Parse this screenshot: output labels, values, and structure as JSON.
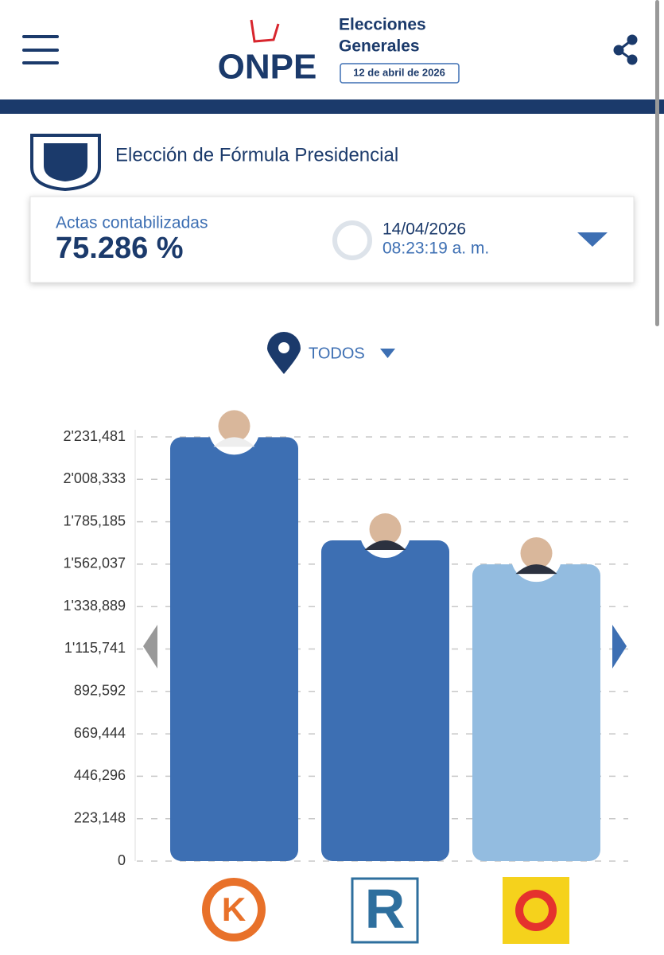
{
  "header": {
    "brand": "ONPE",
    "event_line1": "Elecciones",
    "event_line2": "Generales",
    "event_date": "12 de abril de 2026"
  },
  "section_title": "Elección de Fórmula Presidencial",
  "status": {
    "label": "Actas contabilizadas",
    "percent": "75.286 %",
    "date": "14/04/2026",
    "time": "08:23:19 a. m."
  },
  "filter": "TODOS",
  "party_logos": [
    "K",
    "R"
  ],
  "chart_data": {
    "type": "bar",
    "categories": [
      null,
      null,
      null
    ],
    "values": [
      2230000,
      1687000,
      1561000
    ],
    "colors": [
      "#3d6fb3",
      "#3d6fb3",
      "#93bce0"
    ],
    "ylim": [
      0,
      2231481
    ],
    "yticks": [
      0,
      {
        "value": 223148,
        "label": "223,148"
      },
      {
        "value": 446296,
        "label": "446,296"
      },
      {
        "value": 669444,
        "label": "669,444"
      },
      {
        "value": 892592,
        "label": "892,592"
      },
      {
        "value": 1115741,
        "label": "1'115,741"
      },
      {
        "value": 1338889,
        "label": "1'338,889"
      },
      {
        "value": 1562037,
        "label": "1'562,037"
      },
      {
        "value": 1785185,
        "label": "1'785,185"
      },
      {
        "value": 2008333,
        "label": "2'008,333"
      },
      {
        "value": 2231481,
        "label": "2'231,481"
      }
    ],
    "grid": true
  }
}
